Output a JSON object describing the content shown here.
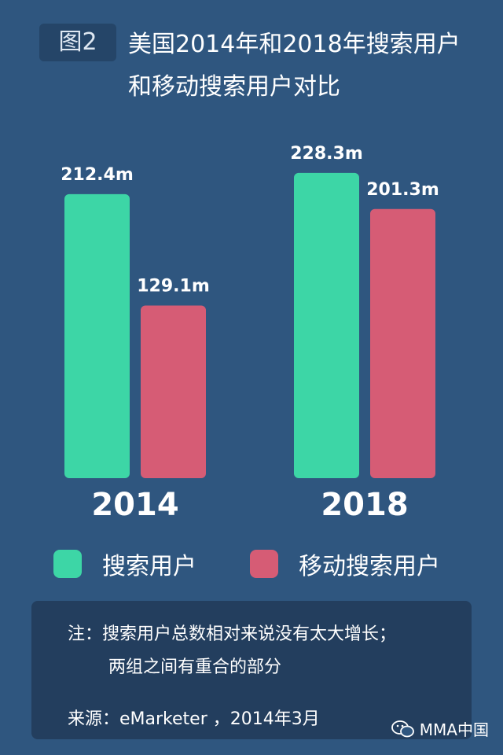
{
  "header": {
    "figure_tag": "图2",
    "title_line1": "美国2014年和2018年搜索用户",
    "title_line2": "和移动搜索用户对比"
  },
  "chart_data": {
    "type": "bar",
    "categories": [
      "2014",
      "2018"
    ],
    "series": [
      {
        "name": "搜索用户",
        "values": [
          212.4,
          228.3
        ],
        "labels": [
          "212.4m",
          "228.3m"
        ],
        "color": "#3dd6a6"
      },
      {
        "name": "移动搜索用户",
        "values": [
          129.1,
          201.3
        ],
        "labels": [
          "129.1m",
          "201.3m"
        ],
        "color": "#d65c75"
      }
    ],
    "unit": "m",
    "grid": false,
    "legend_position": "bottom"
  },
  "legend": [
    {
      "label": "搜索用户",
      "color": "#3dd6a6"
    },
    {
      "label": "移动搜索用户",
      "color": "#d65c75"
    }
  ],
  "note": {
    "line1": "注：搜索用户总数相对来说没有太大增长；",
    "line2": "两组之间有重合的部分",
    "source": "来源：eMarketer ，2014年3月"
  },
  "watermark": {
    "text": "MMA中国",
    "icon": "wechat-icon"
  },
  "colors": {
    "background": "#2f567f",
    "note_box": "#233e5e",
    "badge": "#254568"
  }
}
